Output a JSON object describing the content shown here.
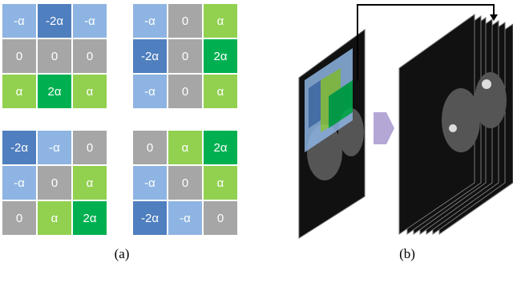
{
  "grids": [
    {
      "rows": [
        [
          "-α",
          "-2α",
          "-α"
        ],
        [
          "0",
          "0",
          "0"
        ],
        [
          "α",
          "2α",
          "α"
        ]
      ],
      "colors": [
        [
          "#8db4e2",
          "#4f7fbf",
          "#8db4e2"
        ],
        [
          "#a6a6a6",
          "#a6a6a6",
          "#a6a6a6"
        ],
        [
          "#92d050",
          "#00b050",
          "#92d050"
        ]
      ]
    },
    {
      "rows": [
        [
          "-α",
          "0",
          "α"
        ],
        [
          "-2α",
          "0",
          "2α"
        ],
        [
          "-α",
          "0",
          "α"
        ]
      ],
      "colors": [
        [
          "#8db4e2",
          "#a6a6a6",
          "#92d050"
        ],
        [
          "#4f7fbf",
          "#a6a6a6",
          "#00b050"
        ],
        [
          "#8db4e2",
          "#a6a6a6",
          "#92d050"
        ]
      ]
    },
    {
      "rows": [
        [
          "-2α",
          "-α",
          "0"
        ],
        [
          "-α",
          "0",
          "α"
        ],
        [
          "0",
          "α",
          "2α"
        ]
      ],
      "colors": [
        [
          "#4f7fbf",
          "#8db4e2",
          "#a6a6a6"
        ],
        [
          "#8db4e2",
          "#a6a6a6",
          "#92d050"
        ],
        [
          "#a6a6a6",
          "#92d050",
          "#00b050"
        ]
      ]
    },
    {
      "rows": [
        [
          "0",
          "α",
          "2α"
        ],
        [
          "-α",
          "0",
          "α"
        ],
        [
          "-2α",
          "-α",
          "0"
        ]
      ],
      "colors": [
        [
          "#a6a6a6",
          "#92d050",
          "#00b050"
        ],
        [
          "#8db4e2",
          "#a6a6a6",
          "#92d050"
        ],
        [
          "#4f7fbf",
          "#8db4e2",
          "#a6a6a6"
        ]
      ]
    }
  ],
  "panel_labels": [
    "(a)",
    "(b)"
  ]
}
